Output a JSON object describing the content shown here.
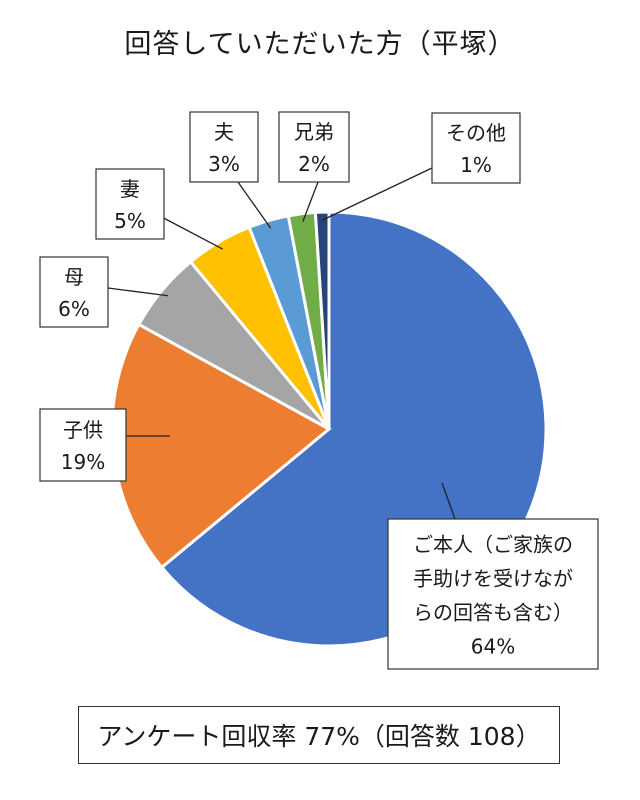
{
  "title": "回答していただいた方（平塚）",
  "footer": "アンケート回収率 77%（回答数 108）",
  "chart_data": {
    "type": "pie",
    "title": "回答していただいた方（平塚）",
    "slices": [
      {
        "label": "ご本人（ご家族の手助けを受けながらの回答も含む）",
        "label_lines": [
          "ご本人（ご家族の",
          "手助けを受けなが",
          "らの回答も含む）"
        ],
        "value": 64,
        "value_label": "64%",
        "color": "#4472C4"
      },
      {
        "label": "子供",
        "label_lines": [
          "子供"
        ],
        "value": 19,
        "value_label": "19%",
        "color": "#ED7D31"
      },
      {
        "label": "母",
        "label_lines": [
          "母"
        ],
        "value": 6,
        "value_label": "6%",
        "color": "#A5A5A5"
      },
      {
        "label": "妻",
        "label_lines": [
          "妻"
        ],
        "value": 5,
        "value_label": "5%",
        "color": "#FFC000"
      },
      {
        "label": "夫",
        "label_lines": [
          "夫"
        ],
        "value": 3,
        "value_label": "3%",
        "color": "#5B9BD5"
      },
      {
        "label": "兄弟",
        "label_lines": [
          "兄弟"
        ],
        "value": 2,
        "value_label": "2%",
        "color": "#70AD47"
      },
      {
        "label": "その他",
        "label_lines": [
          "その他"
        ],
        "value": 1,
        "value_label": "1%",
        "color": "#264478"
      }
    ]
  }
}
